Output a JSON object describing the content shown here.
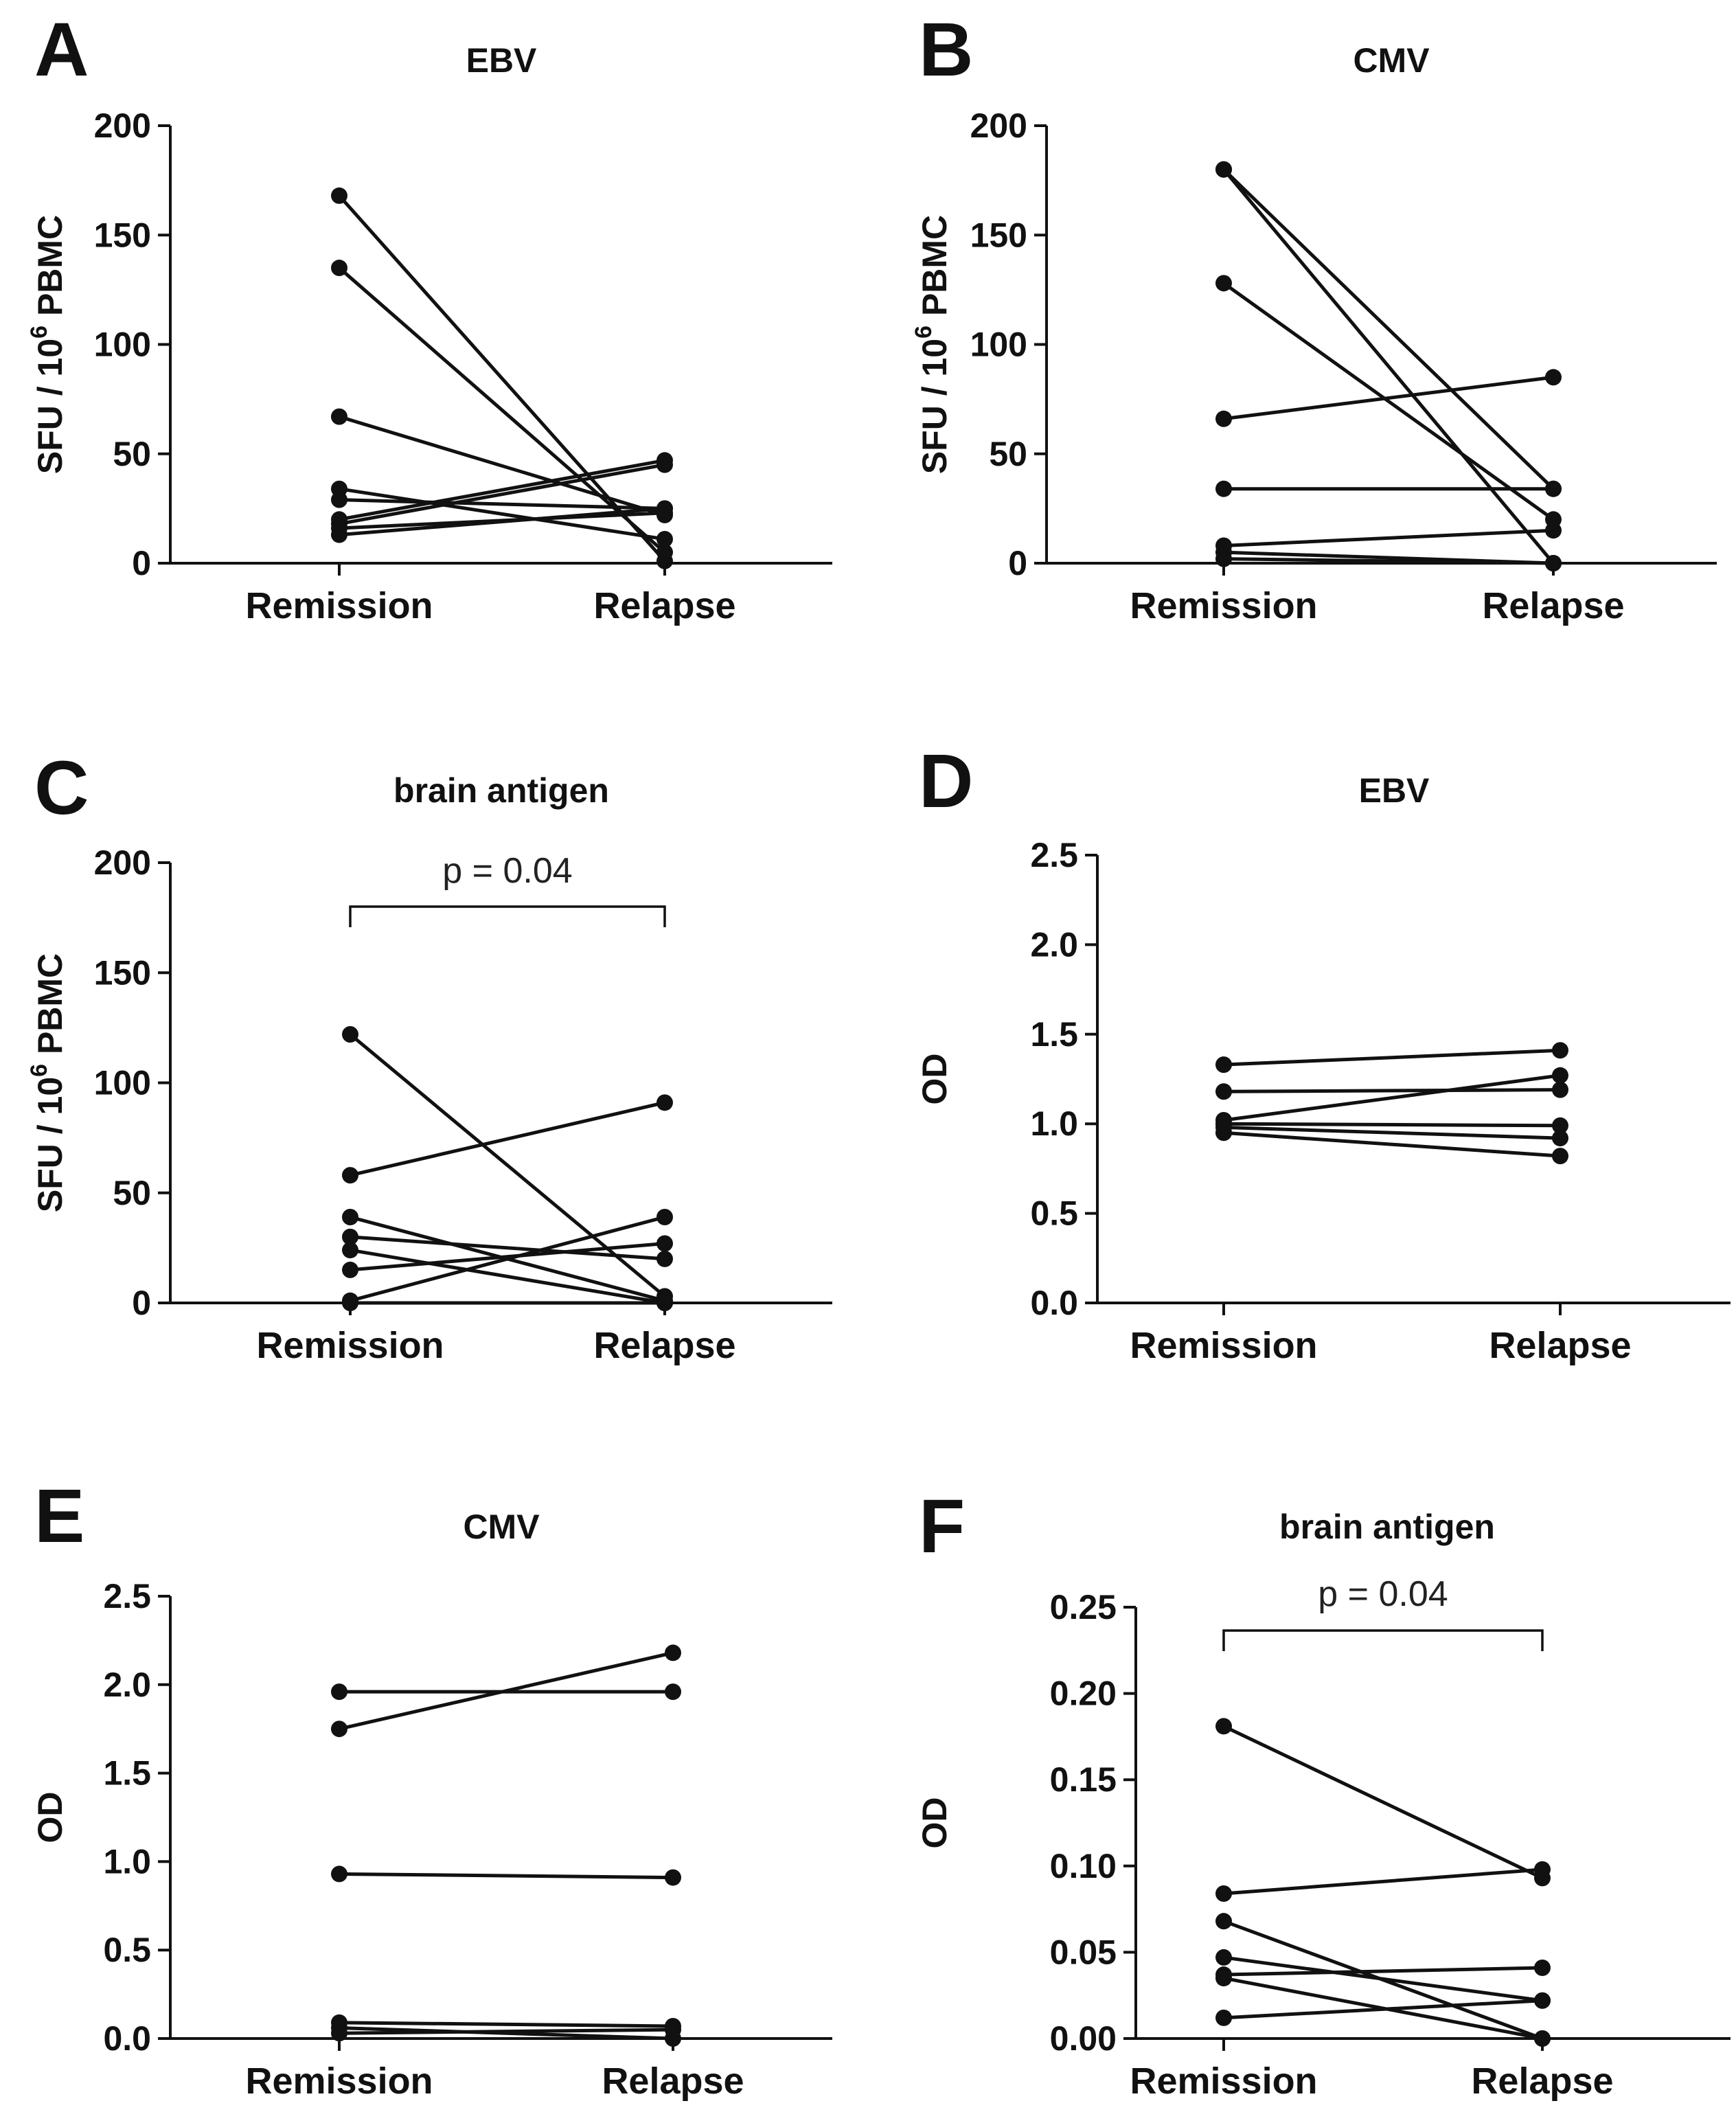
{
  "chart_data": [
    {
      "panel": "A",
      "type": "line",
      "title": "EBV",
      "ylabel": "SFU / 10^6 PBMC",
      "ylim": [
        0,
        200
      ],
      "yticks": [
        "0",
        "50",
        "100",
        "150",
        "200"
      ],
      "categories": [
        "Remission",
        "Relapse"
      ],
      "pairs": [
        [
          168,
          1
        ],
        [
          135,
          5
        ],
        [
          67,
          22
        ],
        [
          34,
          11
        ],
        [
          29,
          25
        ],
        [
          20,
          47
        ],
        [
          18,
          45
        ],
        [
          16,
          23
        ],
        [
          13,
          25
        ]
      ]
    },
    {
      "panel": "B",
      "type": "line",
      "title": "CMV",
      "ylabel": "SFU / 10^6 PBMC",
      "ylim": [
        0,
        200
      ],
      "yticks": [
        "0",
        "50",
        "100",
        "150",
        "200"
      ],
      "categories": [
        "Remission",
        "Relapse"
      ],
      "pairs": [
        [
          180,
          0
        ],
        [
          180,
          34
        ],
        [
          128,
          20
        ],
        [
          66,
          85
        ],
        [
          34,
          34
        ],
        [
          8,
          15
        ],
        [
          5,
          0
        ],
        [
          2,
          0
        ]
      ]
    },
    {
      "panel": "C",
      "type": "line",
      "title": "brain antigen",
      "ylabel": "SFU / 10^6 PBMC",
      "ylim": [
        0,
        200
      ],
      "yticks": [
        "0",
        "50",
        "100",
        "150",
        "200"
      ],
      "categories": [
        "Remission",
        "Relapse"
      ],
      "annotation": "p = 0.04",
      "pairs": [
        [
          122,
          3
        ],
        [
          58,
          91
        ],
        [
          39,
          1
        ],
        [
          30,
          20
        ],
        [
          24,
          0
        ],
        [
          15,
          27
        ],
        [
          1,
          39
        ],
        [
          0,
          0
        ]
      ]
    },
    {
      "panel": "D",
      "type": "line",
      "title": "EBV",
      "ylabel": "OD",
      "ylim": [
        0,
        2.5
      ],
      "yticks": [
        "0.0",
        "0.5",
        "1.0",
        "1.5",
        "2.0",
        "2.5"
      ],
      "categories": [
        "Remission",
        "Relapse"
      ],
      "pairs": [
        [
          1.33,
          1.41
        ],
        [
          1.18,
          1.19
        ],
        [
          1.02,
          1.27
        ],
        [
          1.0,
          0.99
        ],
        [
          0.98,
          0.92
        ],
        [
          0.95,
          0.82
        ]
      ]
    },
    {
      "panel": "E",
      "type": "line",
      "title": "CMV",
      "ylabel": "OD",
      "ylim": [
        0,
        2.5
      ],
      "yticks": [
        "0.0",
        "0.5",
        "1.0",
        "1.5",
        "2.0",
        "2.5"
      ],
      "categories": [
        "Remission",
        "Relapse"
      ],
      "pairs": [
        [
          1.96,
          1.96
        ],
        [
          1.75,
          2.18
        ],
        [
          0.93,
          0.91
        ],
        [
          0.09,
          0.07
        ],
        [
          0.06,
          0.0
        ],
        [
          0.03,
          0.05
        ]
      ]
    },
    {
      "panel": "F",
      "type": "line",
      "title": "brain antigen",
      "ylabel": "OD",
      "ylim": [
        0,
        0.25
      ],
      "yticks": [
        "0.00",
        "0.05",
        "0.10",
        "0.15",
        "0.20",
        "0.25"
      ],
      "categories": [
        "Remission",
        "Relapse"
      ],
      "annotation": "p = 0.04",
      "pairs": [
        [
          0.181,
          0.093
        ],
        [
          0.084,
          0.098
        ],
        [
          0.068,
          0.0
        ],
        [
          0.047,
          0.022
        ],
        [
          0.037,
          0.041
        ],
        [
          0.035,
          0.0
        ],
        [
          0.012,
          0.022
        ]
      ]
    }
  ]
}
